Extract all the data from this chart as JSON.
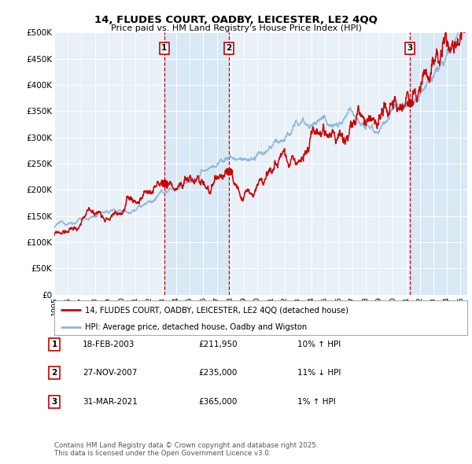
{
  "title1": "14, FLUDES COURT, OADBY, LEICESTER, LE2 4QQ",
  "title2": "Price paid vs. HM Land Registry's House Price Index (HPI)",
  "ylim": [
    0,
    500000
  ],
  "yticks": [
    0,
    50000,
    100000,
    150000,
    200000,
    250000,
    300000,
    350000,
    400000,
    450000,
    500000
  ],
  "ytick_labels": [
    "£0",
    "£50K",
    "£100K",
    "£150K",
    "£200K",
    "£250K",
    "£300K",
    "£350K",
    "£400K",
    "£450K",
    "£500K"
  ],
  "red_color": "#cc0000",
  "blue_color": "#90b8d8",
  "shade_color": "#d8e8f5",
  "bg_color": "#e8f0f8",
  "grid_color": "#ffffff",
  "transaction_dates": [
    2003.12,
    2007.9,
    2021.25
  ],
  "transaction_prices": [
    211950,
    235000,
    365000
  ],
  "transaction_labels": [
    "1",
    "2",
    "3"
  ],
  "legend_red": "14, FLUDES COURT, OADBY, LEICESTER, LE2 4QQ (detached house)",
  "legend_blue": "HPI: Average price, detached house, Oadby and Wigston",
  "table_data": [
    [
      "1",
      "18-FEB-2003",
      "£211,950",
      "10% ↑ HPI"
    ],
    [
      "2",
      "27-NOV-2007",
      "£235,000",
      "11% ↓ HPI"
    ],
    [
      "3",
      "31-MAR-2021",
      "£365,000",
      "1% ↑ HPI"
    ]
  ],
  "footer": "Contains HM Land Registry data © Crown copyright and database right 2025.\nThis data is licensed under the Open Government Licence v3.0.",
  "xmin": 1995,
  "xmax": 2025.5
}
